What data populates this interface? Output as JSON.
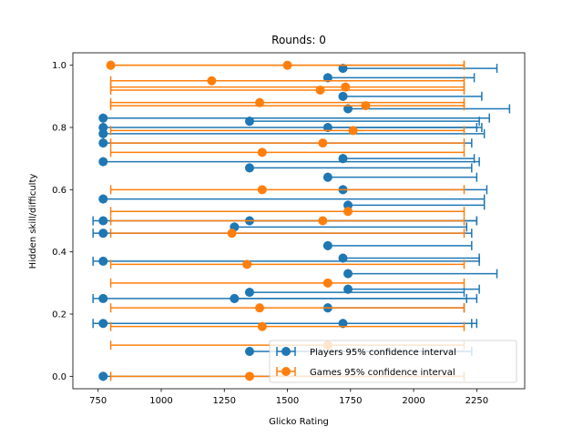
{
  "chart_data": {
    "type": "scatter",
    "title": "Rounds: 0",
    "xlabel": "Glicko Rating",
    "ylabel": "Hidden skill/difficulty",
    "xlim": [
      650,
      2440
    ],
    "ylim": [
      -0.04,
      1.04
    ],
    "xticks": [
      750,
      1000,
      1250,
      1500,
      1750,
      2000,
      2250
    ],
    "xtick_labels": [
      "750",
      "1000",
      "1250",
      "1500",
      "1750",
      "2000",
      "2250"
    ],
    "yticks": [
      0.0,
      0.2,
      0.4,
      0.6,
      0.8,
      1.0
    ],
    "ytick_labels": [
      "0.0",
      "0.2",
      "0.4",
      "0.6",
      "0.8",
      "1.0"
    ],
    "grid": false,
    "legend_position": "lower right",
    "series": [
      {
        "name": "Players 95% confidence interval",
        "color": "#1f77b4",
        "points": [
          {
            "x": 770,
            "y": 0.83,
            "xerr_low": 770,
            "xerr_high": 2300
          },
          {
            "x": 770,
            "y": 0.8,
            "xerr_low": 770,
            "xerr_high": 2250
          },
          {
            "x": 770,
            "y": 0.78,
            "xerr_low": 770,
            "xerr_high": 2280
          },
          {
            "x": 770,
            "y": 0.75,
            "xerr_low": 770,
            "xerr_high": 2230
          },
          {
            "x": 770,
            "y": 0.69,
            "xerr_low": 770,
            "xerr_high": 2260
          },
          {
            "x": 770,
            "y": 0.57,
            "xerr_low": 770,
            "xerr_high": 2280
          },
          {
            "x": 770,
            "y": 0.5,
            "xerr_low": 730,
            "xerr_high": 2250
          },
          {
            "x": 770,
            "y": 0.46,
            "xerr_low": 730,
            "xerr_high": 2230
          },
          {
            "x": 770,
            "y": 0.37,
            "xerr_low": 730,
            "xerr_high": 2260
          },
          {
            "x": 770,
            "y": 0.25,
            "xerr_low": 730,
            "xerr_high": 2250
          },
          {
            "x": 770,
            "y": 0.17,
            "xerr_low": 730,
            "xerr_high": 2230
          },
          {
            "x": 770,
            "y": 0.0,
            "xerr_low": 770,
            "xerr_high": 2200
          },
          {
            "x": 1350,
            "y": 0.82,
            "xerr_low": 1350,
            "xerr_high": 2260
          },
          {
            "x": 1350,
            "y": 0.67,
            "xerr_low": 1350,
            "xerr_high": 2230
          },
          {
            "x": 1350,
            "y": 0.5,
            "xerr_low": 1350,
            "xerr_high": 2250
          },
          {
            "x": 1350,
            "y": 0.27,
            "xerr_low": 1350,
            "xerr_high": 2200
          },
          {
            "x": 1350,
            "y": 0.08,
            "xerr_low": 1350,
            "xerr_high": 2230
          },
          {
            "x": 1290,
            "y": 0.48,
            "xerr_low": 1290,
            "xerr_high": 2210
          },
          {
            "x": 1290,
            "y": 0.25,
            "xerr_low": 1290,
            "xerr_high": 2210
          },
          {
            "x": 1660,
            "y": 0.96,
            "xerr_low": 1660,
            "xerr_high": 2240
          },
          {
            "x": 1660,
            "y": 0.8,
            "xerr_low": 1660,
            "xerr_high": 2270
          },
          {
            "x": 1660,
            "y": 0.64,
            "xerr_low": 1660,
            "xerr_high": 2250
          },
          {
            "x": 1660,
            "y": 0.42,
            "xerr_low": 1660,
            "xerr_high": 2230
          },
          {
            "x": 1660,
            "y": 0.22,
            "xerr_low": 1660,
            "xerr_high": 2200
          },
          {
            "x": 1720,
            "y": 0.99,
            "xerr_low": 1720,
            "xerr_high": 2330
          },
          {
            "x": 1720,
            "y": 0.9,
            "xerr_low": 1720,
            "xerr_high": 2270
          },
          {
            "x": 1720,
            "y": 0.7,
            "xerr_low": 1720,
            "xerr_high": 2240
          },
          {
            "x": 1720,
            "y": 0.6,
            "xerr_low": 1720,
            "xerr_high": 2290
          },
          {
            "x": 1720,
            "y": 0.38,
            "xerr_low": 1720,
            "xerr_high": 2260
          },
          {
            "x": 1720,
            "y": 0.17,
            "xerr_low": 1720,
            "xerr_high": 2250
          },
          {
            "x": 1740,
            "y": 0.86,
            "xerr_low": 1740,
            "xerr_high": 2380
          },
          {
            "x": 1740,
            "y": 0.55,
            "xerr_low": 1740,
            "xerr_high": 2280
          },
          {
            "x": 1740,
            "y": 0.33,
            "xerr_low": 1740,
            "xerr_high": 2330
          },
          {
            "x": 1740,
            "y": 0.28,
            "xerr_low": 1740,
            "xerr_high": 2260
          }
        ]
      },
      {
        "name": "Games 95% confidence interval",
        "color": "#ff7f0e",
        "points": [
          {
            "x": 800,
            "y": 1.0,
            "xerr_low": 800,
            "xerr_high": 2200
          },
          {
            "x": 1200,
            "y": 0.95,
            "xerr_low": 800,
            "xerr_high": 2200
          },
          {
            "x": 1500,
            "y": 1.0,
            "xerr_low": 800,
            "xerr_high": 2200
          },
          {
            "x": 1390,
            "y": 0.88,
            "xerr_low": 800,
            "xerr_high": 2200
          },
          {
            "x": 1400,
            "y": 0.72,
            "xerr_low": 800,
            "xerr_high": 2200
          },
          {
            "x": 1400,
            "y": 0.6,
            "xerr_low": 800,
            "xerr_high": 2200
          },
          {
            "x": 1280,
            "y": 0.46,
            "xerr_low": 800,
            "xerr_high": 2200
          },
          {
            "x": 1340,
            "y": 0.36,
            "xerr_low": 800,
            "xerr_high": 2200
          },
          {
            "x": 1390,
            "y": 0.22,
            "xerr_low": 800,
            "xerr_high": 2200
          },
          {
            "x": 1400,
            "y": 0.16,
            "xerr_low": 800,
            "xerr_high": 2200
          },
          {
            "x": 1630,
            "y": 0.92,
            "xerr_low": 800,
            "xerr_high": 2200
          },
          {
            "x": 1640,
            "y": 0.75,
            "xerr_low": 800,
            "xerr_high": 2200
          },
          {
            "x": 1640,
            "y": 0.5,
            "xerr_low": 800,
            "xerr_high": 2200
          },
          {
            "x": 1660,
            "y": 0.3,
            "xerr_low": 800,
            "xerr_high": 2200
          },
          {
            "x": 1730,
            "y": 0.93,
            "xerr_low": 800,
            "xerr_high": 2200
          },
          {
            "x": 1760,
            "y": 0.79,
            "xerr_low": 800,
            "xerr_high": 2200
          },
          {
            "x": 1740,
            "y": 0.53,
            "xerr_low": 800,
            "xerr_high": 2200
          },
          {
            "x": 1810,
            "y": 0.87,
            "xerr_low": 800,
            "xerr_high": 2200
          },
          {
            "x": 1660,
            "y": 0.1,
            "xerr_low": 800,
            "xerr_high": 2200
          },
          {
            "x": 1350,
            "y": 0.0,
            "xerr_low": 800,
            "xerr_high": 2200
          }
        ]
      }
    ]
  }
}
